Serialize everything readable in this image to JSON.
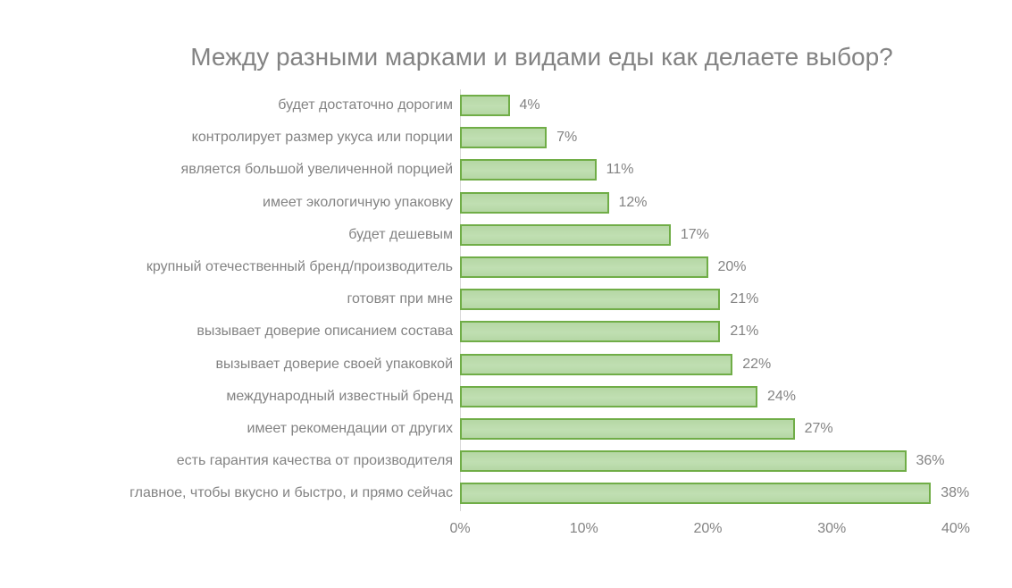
{
  "title": "Между разными марками и видами еды как делаете выбор?",
  "colors": {
    "bar_fill": "#b5d7a5",
    "bar_border": "#70ad47",
    "text": "#838383",
    "axis_line": "#d9d9d9"
  },
  "chart_data": {
    "type": "bar",
    "orientation": "horizontal",
    "title": "Между разными марками и видами еды как делаете выбор?",
    "categories": [
      "будет достаточно дорогим",
      "контролирует размер укуса или порции",
      "является большой увеличенной порцией",
      "имеет экологичную упаковку",
      "будет дешевым",
      "крупный отечественный бренд/производитель",
      "готовят при мне",
      "вызывает доверие описанием состава",
      "вызывает доверие своей упаковкой",
      "международный известный бренд",
      "имеет рекомендации от других",
      "есть гарантия качества от производителя",
      "главное, чтобы вкусно и быстро, и прямо сейчас"
    ],
    "values": [
      4,
      7,
      11,
      12,
      17,
      20,
      21,
      21,
      22,
      24,
      27,
      36,
      38
    ],
    "data_labels": [
      "4%",
      "7%",
      "11%",
      "12%",
      "17%",
      "20%",
      "21%",
      "21%",
      "22%",
      "24%",
      "27%",
      "36%",
      "38%"
    ],
    "xlabel": "",
    "ylabel": "",
    "xlim": [
      0,
      40
    ],
    "x_ticks": [
      "0%",
      "10%",
      "20%",
      "30%",
      "40%"
    ],
    "grid": false,
    "legend": false
  }
}
